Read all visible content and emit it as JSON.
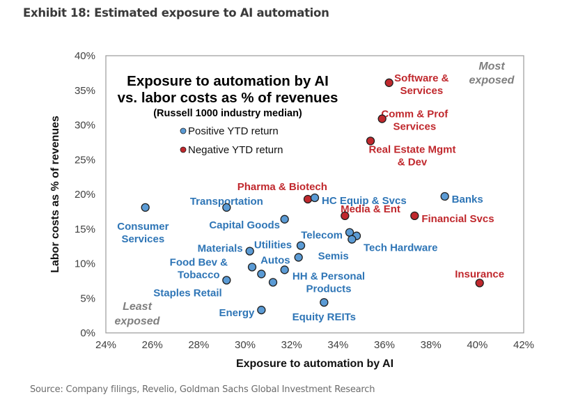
{
  "exhibit_title": "Exhibit 18: Estimated exposure to AI automation",
  "source": "Source: Company filings, Revelio, Goldman Sachs Global Investment Research",
  "colors": {
    "positive": "#5B9BD5",
    "positive_label": "#2E75B6",
    "negative": "#C0282D",
    "negative_label": "#C0282D",
    "outline": "#1f1f1f",
    "corner_text": "#7f7f7f"
  },
  "chart_data": {
    "type": "scatter",
    "title": "Exposure to automation by AI vs. labor costs as % of revenues",
    "title_lines": [
      "Exposure to automation by AI",
      "vs. labor costs as % of revenues"
    ],
    "subtitle": "(Russell 1000 industry median)",
    "xlabel": "Exposure to automation by AI",
    "ylabel": "Labor costs as % of revenues",
    "xlim": [
      24,
      42
    ],
    "ylim": [
      0,
      40
    ],
    "x_ticks": [
      "24%",
      "26%",
      "28%",
      "30%",
      "32%",
      "34%",
      "36%",
      "38%",
      "40%",
      "42%"
    ],
    "y_ticks": [
      "0%",
      "5%",
      "10%",
      "15%",
      "20%",
      "25%",
      "30%",
      "35%",
      "40%"
    ],
    "grid": false,
    "legend": {
      "placement": "top-left",
      "entries": [
        {
          "label": "Positive YTD return",
          "group": "positive"
        },
        {
          "label": "Negative YTD return",
          "group": "negative"
        }
      ]
    },
    "annotations": {
      "most_exposed": [
        "Most",
        "exposed"
      ],
      "least_exposed": [
        "Least",
        "exposed"
      ]
    },
    "points": [
      {
        "name": "Software & Services",
        "label_lines": [
          "Software &",
          "Services"
        ],
        "x": 36.2,
        "y": 36.1,
        "group": "negative",
        "lx": 37.6,
        "ly": 36.8,
        "anchor": "middle"
      },
      {
        "name": "Comm & Prof Services",
        "label_lines": [
          "Comm & Prof",
          "Services"
        ],
        "x": 35.9,
        "y": 30.9,
        "group": "negative",
        "lx": 37.3,
        "ly": 31.6,
        "anchor": "middle"
      },
      {
        "name": "Real Estate Mgmt & Dev",
        "label_lines": [
          "Real Estate  Mgmt",
          "& Dev"
        ],
        "x": 35.4,
        "y": 27.7,
        "group": "negative",
        "lx": 37.2,
        "ly": 26.5,
        "anchor": "middle"
      },
      {
        "name": "Pharma & Biotech",
        "label_lines": [
          "Pharma & Biotech"
        ],
        "x": 32.7,
        "y": 19.3,
        "group": "negative",
        "lx": 31.6,
        "ly": 21.1,
        "anchor": "middle"
      },
      {
        "name": "HC Equip & Svcs",
        "label_lines": [
          "HC Equip & Svcs"
        ],
        "x": 33.0,
        "y": 19.5,
        "group": "positive",
        "lx": 33.3,
        "ly": 19.1,
        "anchor": "start"
      },
      {
        "name": "Media & Ent",
        "label_lines": [
          "Media & Ent"
        ],
        "x": 34.3,
        "y": 16.9,
        "group": "negative",
        "lx": 35.4,
        "ly": 17.9,
        "anchor": "middle"
      },
      {
        "name": "Banks",
        "label_lines": [
          "Banks"
        ],
        "x": 38.6,
        "y": 19.7,
        "group": "positive",
        "lx": 38.9,
        "ly": 19.3,
        "anchor": "start"
      },
      {
        "name": "Financial Svcs",
        "label_lines": [
          "Financial Svcs"
        ],
        "x": 37.3,
        "y": 16.9,
        "group": "negative",
        "lx": 37.6,
        "ly": 16.5,
        "anchor": "start"
      },
      {
        "name": "Insurance",
        "label_lines": [
          "Insurance"
        ],
        "x": 40.1,
        "y": 7.2,
        "group": "negative",
        "lx": 40.1,
        "ly": 8.5,
        "anchor": "middle"
      },
      {
        "name": "Consumer Services",
        "label_lines": [
          "Consumer",
          "Services"
        ],
        "x": 25.7,
        "y": 18.1,
        "group": "positive",
        "lx": 25.6,
        "ly": 15.4,
        "anchor": "middle"
      },
      {
        "name": "Transportation",
        "label_lines": [
          "Transportation"
        ],
        "x": 29.2,
        "y": 18.1,
        "group": "positive",
        "lx": 29.2,
        "ly": 19.0,
        "anchor": "middle"
      },
      {
        "name": "Capital Goods",
        "label_lines": [
          "Capital Goods"
        ],
        "x": 31.7,
        "y": 16.4,
        "group": "positive",
        "lx": 31.5,
        "ly": 15.6,
        "anchor": "end"
      },
      {
        "name": "Telecom",
        "label_lines": [
          "Telecom"
        ],
        "x": 34.5,
        "y": 14.5,
        "group": "positive",
        "lx": 34.2,
        "ly": 14.1,
        "anchor": "end"
      },
      {
        "name": "Tech Hardware",
        "label_lines": [
          "Tech Hardware"
        ],
        "x": 34.8,
        "y": 14.0,
        "group": "positive",
        "lx": 35.1,
        "ly": 12.3,
        "anchor": "start"
      },
      {
        "name": "Semis",
        "label_lines": [
          "Semis"
        ],
        "x": 34.6,
        "y": 13.5,
        "group": "positive",
        "lx": 33.8,
        "ly": 11.1,
        "anchor": "middle"
      },
      {
        "name": "Utilities",
        "label_lines": [
          "Utilities"
        ],
        "x": 32.4,
        "y": 12.6,
        "group": "positive",
        "lx": 31.2,
        "ly": 12.7,
        "anchor": "middle"
      },
      {
        "name": "Materials",
        "label_lines": [
          "Materials"
        ],
        "x": 30.2,
        "y": 11.8,
        "group": "positive",
        "lx": 29.9,
        "ly": 12.2,
        "anchor": "end"
      },
      {
        "name": "Autos",
        "label_lines": [
          "Autos"
        ],
        "x": 32.3,
        "y": 10.9,
        "group": "positive",
        "lx": 31.3,
        "ly": 10.5,
        "anchor": "middle"
      },
      {
        "name": "Food Bev & Tobacco",
        "label_lines": [
          "Food Bev &",
          "Tobacco"
        ],
        "x": 30.3,
        "y": 9.5,
        "group": "positive",
        "lx": 28.0,
        "ly": 10.2,
        "anchor": "middle"
      },
      {
        "name": "Food Bev & Tobacco (2)",
        "label_lines": [],
        "x": 30.7,
        "y": 8.5,
        "group": "positive"
      },
      {
        "name": "Food Bev & Tobacco (3)",
        "label_lines": [],
        "x": 31.2,
        "y": 7.3,
        "group": "positive"
      },
      {
        "name": "HH & Personal Products",
        "label_lines": [
          "HH & Personal",
          "Products"
        ],
        "x": 31.7,
        "y": 9.1,
        "group": "positive",
        "lx": 33.6,
        "ly": 8.2,
        "anchor": "middle"
      },
      {
        "name": "Staples Retail",
        "label_lines": [
          "Staples Retail"
        ],
        "x": 29.2,
        "y": 7.6,
        "group": "positive",
        "lx": 29.0,
        "ly": 5.8,
        "anchor": "end"
      },
      {
        "name": "Energy",
        "label_lines": [
          "Energy"
        ],
        "x": 30.7,
        "y": 3.3,
        "group": "positive",
        "lx": 30.4,
        "ly": 2.9,
        "anchor": "end"
      },
      {
        "name": "Equity REITs",
        "label_lines": [
          "Equity REITs"
        ],
        "x": 33.4,
        "y": 4.4,
        "group": "positive",
        "lx": 33.4,
        "ly": 2.3,
        "anchor": "middle"
      }
    ]
  }
}
